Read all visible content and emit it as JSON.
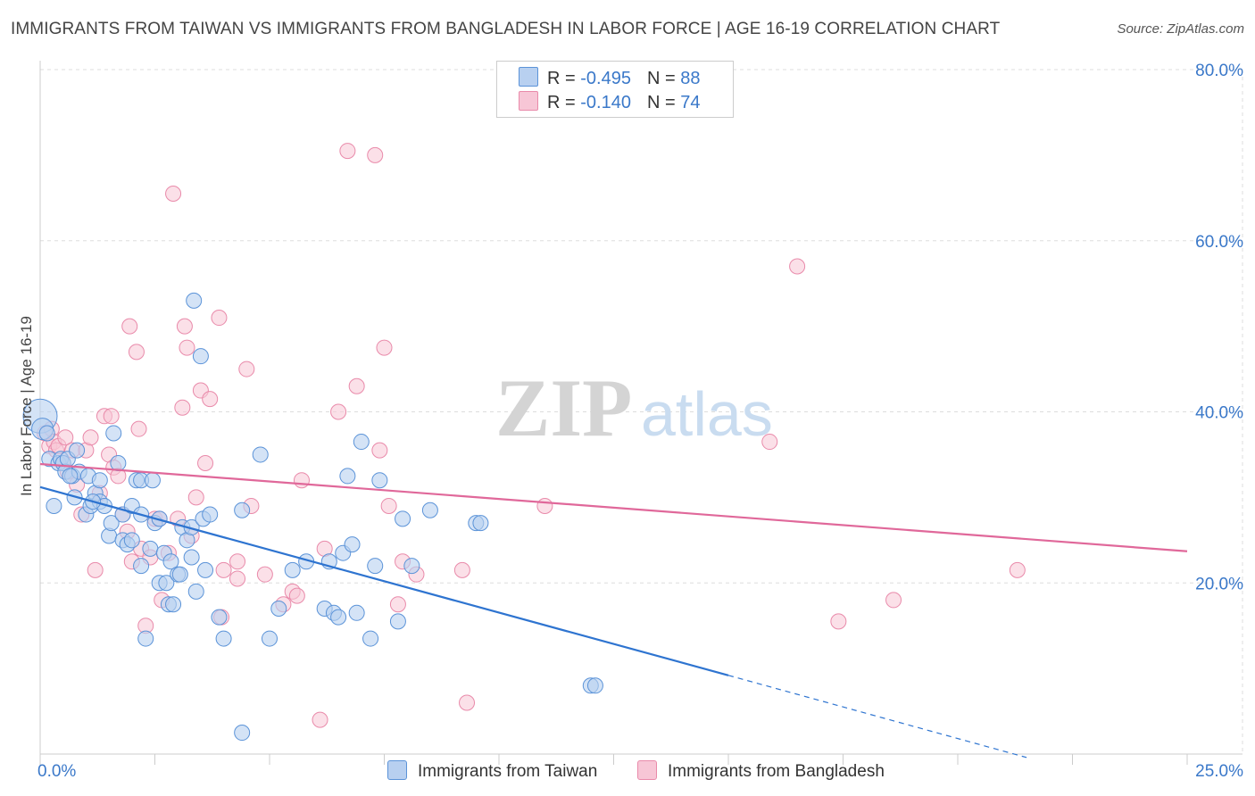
{
  "header": {
    "title": "IMMIGRANTS FROM TAIWAN VS IMMIGRANTS FROM BANGLADESH IN LABOR FORCE | AGE 16-19 CORRELATION CHART",
    "source": "Source: ZipAtlas.com"
  },
  "watermark": {
    "zip": "ZIP",
    "atlas": "atlas"
  },
  "legend": {
    "taiwan": {
      "r_label": "R = ",
      "r_value": "-0.495",
      "n_label": "N = ",
      "n_value": "88"
    },
    "bangladesh": {
      "r_label": "R = ",
      "r_value": "-0.140",
      "n_label": "N = ",
      "n_value": "74"
    }
  },
  "bottom_legend": {
    "taiwan": "Immigrants from Taiwan",
    "bangladesh": "Immigrants from Bangladesh"
  },
  "colors": {
    "taiwan_fill": "#b8d0f0",
    "taiwan_stroke": "#5b93d8",
    "taiwan_line": "#2e74d0",
    "bangladesh_fill": "#f7c6d6",
    "bangladesh_stroke": "#e98aaa",
    "bangladesh_line": "#e0689a",
    "axis_text": "#3a78c9",
    "grid": "#dddddd"
  },
  "chart_data": {
    "type": "scatter",
    "title": "IMMIGRANTS FROM TAIWAN VS IMMIGRANTS FROM BANGLADESH IN LABOR FORCE | AGE 16-19 CORRELATION CHART",
    "xlabel": "",
    "ylabel": "In Labor Force | Age 16-19",
    "xlim": [
      0,
      25
    ],
    "ylim": [
      0,
      80
    ],
    "x_tick_labels": [
      "0.0%",
      "25.0%"
    ],
    "y_ticks": [
      20,
      40,
      60,
      80
    ],
    "y_tick_labels": [
      "20.0%",
      "40.0%",
      "60.0%",
      "80.0%"
    ],
    "series": [
      {
        "name": "Immigrants from Taiwan",
        "R": -0.495,
        "N": 88,
        "trend": {
          "x": [
            0,
            15
          ],
          "y": [
            31.2,
            9.2
          ],
          "dashed_to": {
            "x": 21.5,
            "y": -0.4
          }
        },
        "points": [
          [
            0.0,
            39.5
          ],
          [
            0.05,
            38.0
          ],
          [
            0.2,
            34.5
          ],
          [
            0.3,
            29.0
          ],
          [
            0.4,
            34.0
          ],
          [
            0.45,
            34.5
          ],
          [
            0.5,
            34.0
          ],
          [
            0.55,
            33.0
          ],
          [
            0.6,
            34.5
          ],
          [
            0.7,
            32.5
          ],
          [
            0.75,
            30.0
          ],
          [
            0.8,
            35.5
          ],
          [
            0.85,
            33.0
          ],
          [
            1.0,
            28.0
          ],
          [
            1.05,
            32.5
          ],
          [
            1.1,
            29.0
          ],
          [
            1.2,
            30.5
          ],
          [
            1.3,
            32.0
          ],
          [
            1.3,
            29.5
          ],
          [
            1.4,
            29.0
          ],
          [
            1.5,
            25.5
          ],
          [
            1.55,
            27.0
          ],
          [
            1.6,
            37.5
          ],
          [
            1.7,
            34.0
          ],
          [
            1.8,
            28.0
          ],
          [
            1.8,
            25.0
          ],
          [
            1.9,
            24.5
          ],
          [
            2.0,
            25.0
          ],
          [
            2.0,
            29.0
          ],
          [
            2.1,
            32.0
          ],
          [
            2.2,
            28.0
          ],
          [
            2.2,
            32.0
          ],
          [
            2.2,
            22.0
          ],
          [
            2.3,
            13.5
          ],
          [
            2.4,
            24.0
          ],
          [
            2.5,
            27.0
          ],
          [
            2.6,
            27.5
          ],
          [
            2.6,
            20.0
          ],
          [
            2.7,
            23.5
          ],
          [
            2.75,
            20.0
          ],
          [
            2.8,
            17.5
          ],
          [
            2.85,
            22.5
          ],
          [
            2.9,
            17.5
          ],
          [
            3.0,
            21.0
          ],
          [
            3.05,
            21.0
          ],
          [
            3.1,
            26.5
          ],
          [
            3.2,
            25.0
          ],
          [
            3.3,
            23.0
          ],
          [
            3.3,
            26.5
          ],
          [
            3.35,
            53.0
          ],
          [
            3.4,
            19.0
          ],
          [
            3.5,
            46.5
          ],
          [
            3.55,
            27.5
          ],
          [
            3.6,
            21.5
          ],
          [
            3.7,
            28.0
          ],
          [
            3.9,
            16.0
          ],
          [
            4.0,
            13.5
          ],
          [
            4.4,
            28.5
          ],
          [
            4.8,
            35.0
          ],
          [
            5.0,
            13.5
          ],
          [
            5.2,
            17.0
          ],
          [
            5.5,
            21.5
          ],
          [
            5.8,
            22.5
          ],
          [
            6.2,
            17.0
          ],
          [
            6.3,
            22.5
          ],
          [
            6.4,
            16.5
          ],
          [
            6.5,
            16.0
          ],
          [
            6.6,
            23.5
          ],
          [
            6.7,
            32.5
          ],
          [
            6.8,
            24.5
          ],
          [
            6.9,
            16.5
          ],
          [
            7.0,
            36.5
          ],
          [
            7.2,
            13.5
          ],
          [
            7.3,
            22.0
          ],
          [
            7.4,
            32.0
          ],
          [
            7.8,
            15.5
          ],
          [
            7.9,
            27.5
          ],
          [
            8.1,
            22.0
          ],
          [
            8.5,
            28.5
          ],
          [
            9.5,
            27.0
          ],
          [
            9.6,
            27.0
          ],
          [
            12.0,
            8.0
          ],
          [
            12.1,
            8.0
          ],
          [
            4.4,
            2.5
          ],
          [
            0.15,
            37.5
          ],
          [
            0.65,
            32.5
          ],
          [
            1.15,
            29.5
          ],
          [
            2.45,
            32.0
          ]
        ]
      },
      {
        "name": "Immigrants from Bangladesh",
        "R": -0.14,
        "N": 74,
        "trend": {
          "x": [
            0,
            25
          ],
          "y": [
            33.9,
            23.7
          ]
        },
        "points": [
          [
            0.1,
            37.5
          ],
          [
            0.2,
            36.0
          ],
          [
            0.25,
            38.0
          ],
          [
            0.3,
            36.5
          ],
          [
            0.35,
            35.5
          ],
          [
            0.4,
            36.0
          ],
          [
            0.5,
            34.0
          ],
          [
            0.55,
            37.0
          ],
          [
            0.6,
            33.0
          ],
          [
            0.7,
            35.5
          ],
          [
            0.8,
            31.5
          ],
          [
            0.9,
            28.0
          ],
          [
            1.0,
            35.5
          ],
          [
            1.1,
            37.0
          ],
          [
            1.2,
            21.5
          ],
          [
            1.3,
            30.5
          ],
          [
            1.4,
            39.5
          ],
          [
            1.5,
            35.0
          ],
          [
            1.55,
            39.5
          ],
          [
            1.6,
            33.5
          ],
          [
            1.7,
            32.5
          ],
          [
            1.8,
            28.0
          ],
          [
            1.9,
            26.0
          ],
          [
            1.95,
            50.0
          ],
          [
            2.0,
            22.5
          ],
          [
            2.1,
            47.0
          ],
          [
            2.15,
            38.0
          ],
          [
            2.2,
            24.0
          ],
          [
            2.3,
            15.0
          ],
          [
            2.4,
            23.0
          ],
          [
            2.5,
            27.5
          ],
          [
            2.6,
            27.5
          ],
          [
            2.65,
            18.0
          ],
          [
            2.8,
            23.5
          ],
          [
            2.9,
            65.5
          ],
          [
            3.0,
            27.5
          ],
          [
            3.1,
            40.5
          ],
          [
            3.15,
            50.0
          ],
          [
            3.2,
            47.5
          ],
          [
            3.3,
            25.5
          ],
          [
            3.4,
            30.0
          ],
          [
            3.5,
            42.5
          ],
          [
            3.6,
            34.0
          ],
          [
            3.7,
            41.5
          ],
          [
            3.9,
            51.0
          ],
          [
            3.95,
            16.0
          ],
          [
            4.0,
            21.5
          ],
          [
            4.3,
            22.5
          ],
          [
            4.3,
            20.5
          ],
          [
            4.5,
            45.0
          ],
          [
            4.6,
            29.0
          ],
          [
            4.9,
            21.0
          ],
          [
            5.3,
            17.5
          ],
          [
            5.5,
            19.0
          ],
          [
            5.6,
            18.5
          ],
          [
            5.7,
            32.0
          ],
          [
            6.1,
            4.0
          ],
          [
            6.2,
            24.0
          ],
          [
            6.5,
            40.0
          ],
          [
            6.7,
            70.5
          ],
          [
            6.9,
            43.0
          ],
          [
            7.3,
            70.0
          ],
          [
            7.4,
            35.5
          ],
          [
            7.5,
            47.5
          ],
          [
            7.6,
            29.0
          ],
          [
            7.8,
            17.5
          ],
          [
            7.9,
            22.5
          ],
          [
            8.2,
            21.0
          ],
          [
            9.2,
            21.5
          ],
          [
            9.3,
            6.0
          ],
          [
            11.0,
            29.0
          ],
          [
            15.9,
            36.5
          ],
          [
            16.5,
            57.0
          ],
          [
            17.4,
            15.5
          ]
        ],
        "extra_points": [
          [
            18.6,
            18.0
          ],
          [
            21.3,
            21.5
          ]
        ]
      }
    ]
  }
}
